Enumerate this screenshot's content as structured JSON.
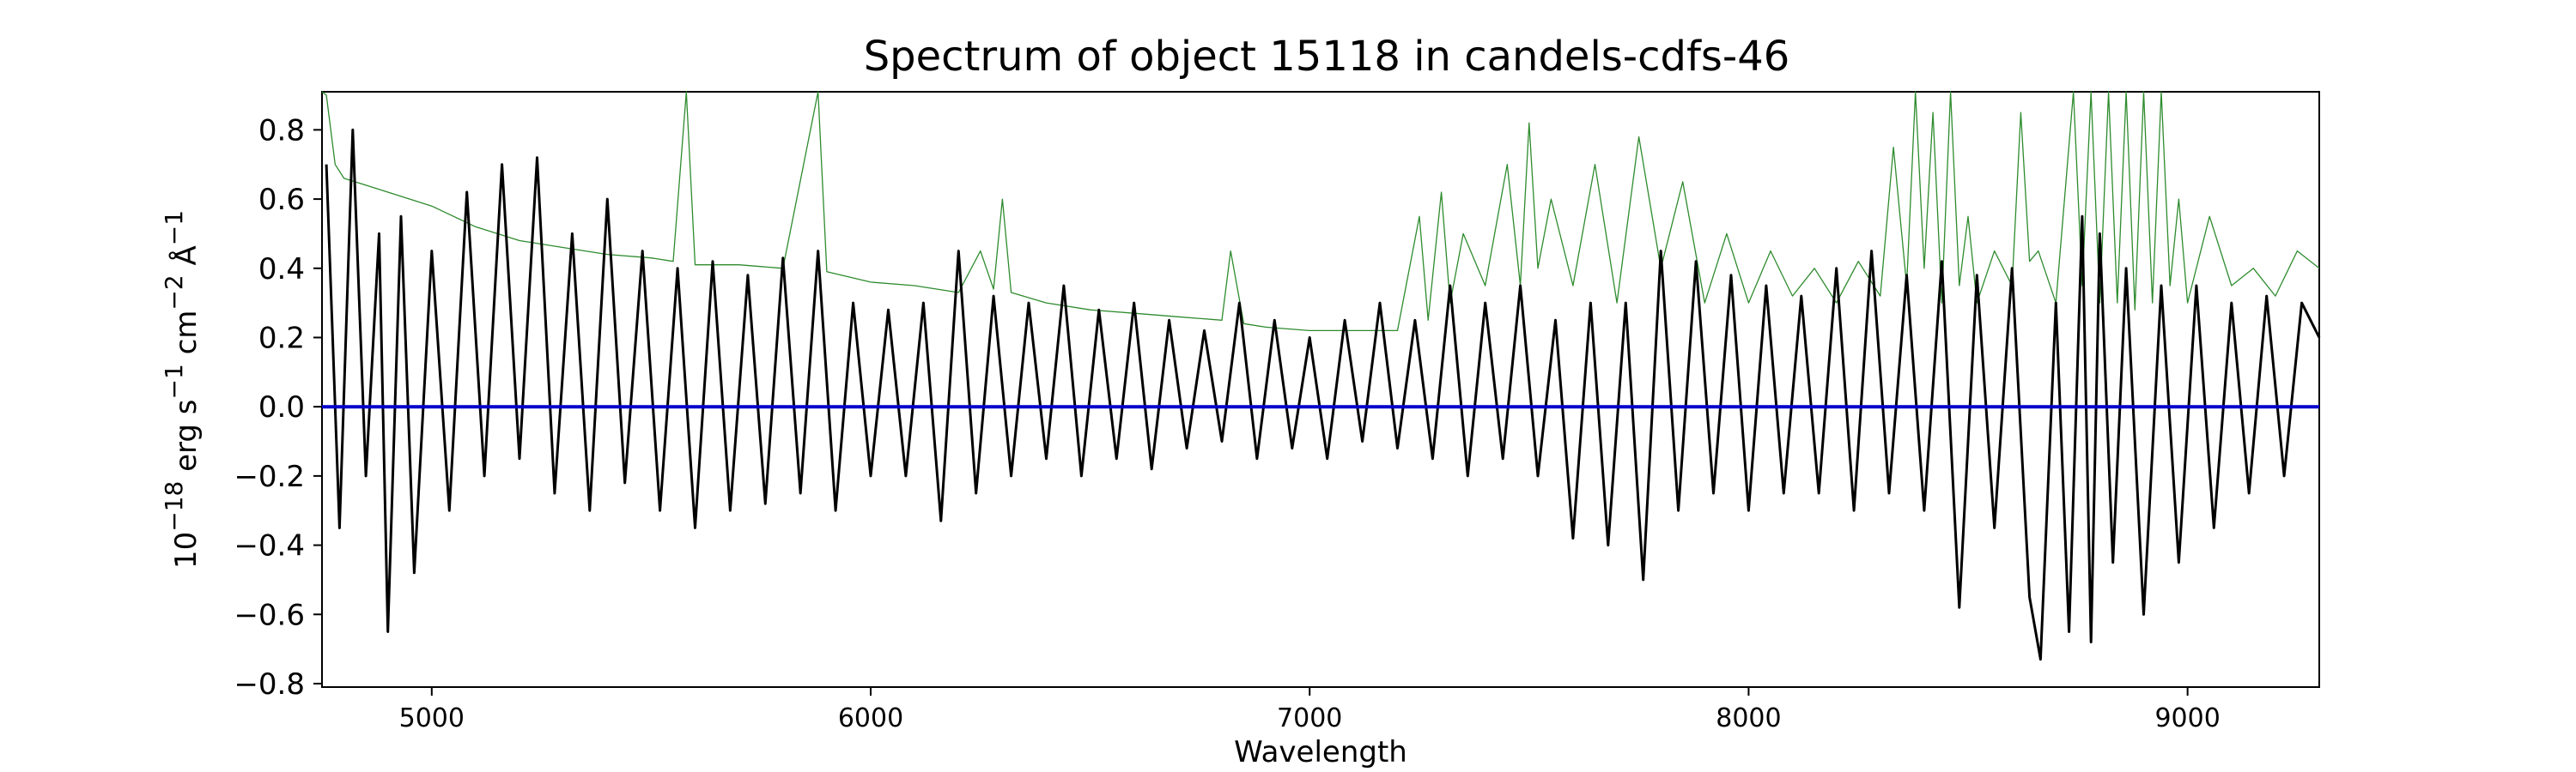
{
  "chart_data": {
    "type": "line",
    "title": "Spectrum of object 15118 in candels-cdfs-46",
    "xlabel": "Wavelength",
    "ylabel_parts": [
      "10",
      "−18",
      " erg s",
      "−1",
      " cm",
      "−2",
      " Å",
      "−1"
    ],
    "xlim": [
      4750,
      9300
    ],
    "ylim": [
      -0.81,
      0.91
    ],
    "xticks": [
      5000,
      6000,
      7000,
      8000,
      9000
    ],
    "yticks": [
      -0.8,
      -0.6,
      -0.4,
      -0.2,
      0.0,
      0.2,
      0.4,
      0.6,
      0.8
    ],
    "ytick_labels": [
      "−0.8",
      "−0.6",
      "−0.4",
      "−0.2",
      "0.0",
      "0.2",
      "0.4",
      "0.6",
      "0.8"
    ],
    "grid": false,
    "legend": "none",
    "series": [
      {
        "role": "flux",
        "color": "#000000",
        "x": [
          4760,
          4790,
          4820,
          4850,
          4880,
          4900,
          4930,
          4960,
          5000,
          5040,
          5080,
          5120,
          5160,
          5200,
          5240,
          5280,
          5320,
          5360,
          5400,
          5440,
          5480,
          5520,
          5560,
          5600,
          5640,
          5680,
          5720,
          5760,
          5800,
          5840,
          5880,
          5920,
          5960,
          6000,
          6040,
          6080,
          6120,
          6160,
          6200,
          6240,
          6280,
          6320,
          6360,
          6400,
          6440,
          6480,
          6520,
          6560,
          6600,
          6640,
          6680,
          6720,
          6760,
          6800,
          6840,
          6880,
          6920,
          6960,
          7000,
          7040,
          7080,
          7120,
          7160,
          7200,
          7240,
          7280,
          7320,
          7360,
          7400,
          7440,
          7480,
          7520,
          7560,
          7600,
          7640,
          7680,
          7720,
          7760,
          7800,
          7840,
          7880,
          7920,
          7960,
          8000,
          8040,
          8080,
          8120,
          8160,
          8200,
          8240,
          8280,
          8320,
          8360,
          8400,
          8440,
          8480,
          8520,
          8560,
          8600,
          8640,
          8665,
          8700,
          8730,
          8760,
          8780,
          8800,
          8830,
          8860,
          8900,
          8940,
          8980,
          9020,
          9060,
          9100,
          9140,
          9180,
          9220,
          9260,
          9300
        ],
        "y": [
          0.7,
          -0.35,
          0.8,
          -0.2,
          0.5,
          -0.65,
          0.55,
          -0.48,
          0.45,
          -0.3,
          0.62,
          -0.2,
          0.7,
          -0.15,
          0.72,
          -0.25,
          0.5,
          -0.3,
          0.6,
          -0.22,
          0.45,
          -0.3,
          0.4,
          -0.35,
          0.42,
          -0.3,
          0.38,
          -0.28,
          0.43,
          -0.25,
          0.45,
          -0.3,
          0.3,
          -0.2,
          0.28,
          -0.2,
          0.3,
          -0.33,
          0.45,
          -0.25,
          0.32,
          -0.2,
          0.3,
          -0.15,
          0.35,
          -0.2,
          0.28,
          -0.15,
          0.3,
          -0.18,
          0.25,
          -0.12,
          0.22,
          -0.1,
          0.3,
          -0.15,
          0.25,
          -0.12,
          0.2,
          -0.15,
          0.25,
          -0.1,
          0.3,
          -0.12,
          0.25,
          -0.15,
          0.35,
          -0.2,
          0.3,
          -0.15,
          0.35,
          -0.2,
          0.25,
          -0.38,
          0.3,
          -0.4,
          0.3,
          -0.5,
          0.45,
          -0.3,
          0.42,
          -0.25,
          0.38,
          -0.3,
          0.35,
          -0.25,
          0.32,
          -0.25,
          0.4,
          -0.3,
          0.45,
          -0.25,
          0.38,
          -0.3,
          0.42,
          -0.58,
          0.38,
          -0.35,
          0.4,
          -0.55,
          -0.73,
          0.3,
          -0.65,
          0.55,
          -0.68,
          0.5,
          -0.45,
          0.4,
          -0.6,
          0.35,
          -0.45,
          0.35,
          -0.35,
          0.3,
          -0.25,
          0.32,
          -0.2,
          0.3,
          0.2
        ]
      },
      {
        "role": "error",
        "color": "#2e8b2e",
        "x": [
          4750,
          4760,
          4780,
          4800,
          4850,
          4900,
          5000,
          5100,
          5200,
          5300,
          5400,
          5500,
          5550,
          5580,
          5600,
          5700,
          5800,
          5880,
          5900,
          6000,
          6100,
          6200,
          6250,
          6280,
          6300,
          6320,
          6400,
          6500,
          6600,
          6700,
          6800,
          6820,
          6850,
          6900,
          7000,
          7100,
          7200,
          7250,
          7270,
          7300,
          7320,
          7350,
          7400,
          7450,
          7480,
          7500,
          7520,
          7550,
          7600,
          7650,
          7700,
          7750,
          7800,
          7850,
          7900,
          7950,
          8000,
          8050,
          8100,
          8150,
          8200,
          8250,
          8300,
          8330,
          8360,
          8380,
          8400,
          8420,
          8440,
          8460,
          8480,
          8500,
          8520,
          8560,
          8600,
          8620,
          8640,
          8660,
          8700,
          8740,
          8760,
          8780,
          8800,
          8820,
          8840,
          8860,
          8880,
          8900,
          8920,
          8940,
          8960,
          8980,
          9000,
          9050,
          9100,
          9150,
          9200,
          9250,
          9300
        ],
        "y": [
          0.92,
          0.9,
          0.7,
          0.66,
          0.64,
          0.62,
          0.58,
          0.52,
          0.48,
          0.46,
          0.44,
          0.43,
          0.42,
          0.92,
          0.41,
          0.41,
          0.4,
          0.92,
          0.39,
          0.36,
          0.35,
          0.33,
          0.45,
          0.34,
          0.6,
          0.33,
          0.3,
          0.28,
          0.27,
          0.26,
          0.25,
          0.45,
          0.24,
          0.23,
          0.22,
          0.22,
          0.22,
          0.55,
          0.25,
          0.62,
          0.3,
          0.5,
          0.35,
          0.7,
          0.35,
          0.82,
          0.4,
          0.6,
          0.35,
          0.7,
          0.3,
          0.78,
          0.4,
          0.65,
          0.3,
          0.5,
          0.3,
          0.45,
          0.32,
          0.4,
          0.3,
          0.42,
          0.32,
          0.75,
          0.35,
          0.92,
          0.4,
          0.85,
          0.3,
          0.92,
          0.35,
          0.55,
          0.3,
          0.45,
          0.35,
          0.85,
          0.42,
          0.45,
          0.3,
          0.92,
          0.35,
          0.92,
          0.3,
          0.92,
          0.3,
          0.92,
          0.28,
          0.92,
          0.3,
          0.92,
          0.35,
          0.6,
          0.3,
          0.55,
          0.35,
          0.4,
          0.32,
          0.45,
          0.4
        ]
      },
      {
        "role": "zero/model",
        "color": "#0000cc",
        "x": [
          4750,
          9300
        ],
        "y": [
          0.0,
          0.0
        ]
      }
    ]
  }
}
